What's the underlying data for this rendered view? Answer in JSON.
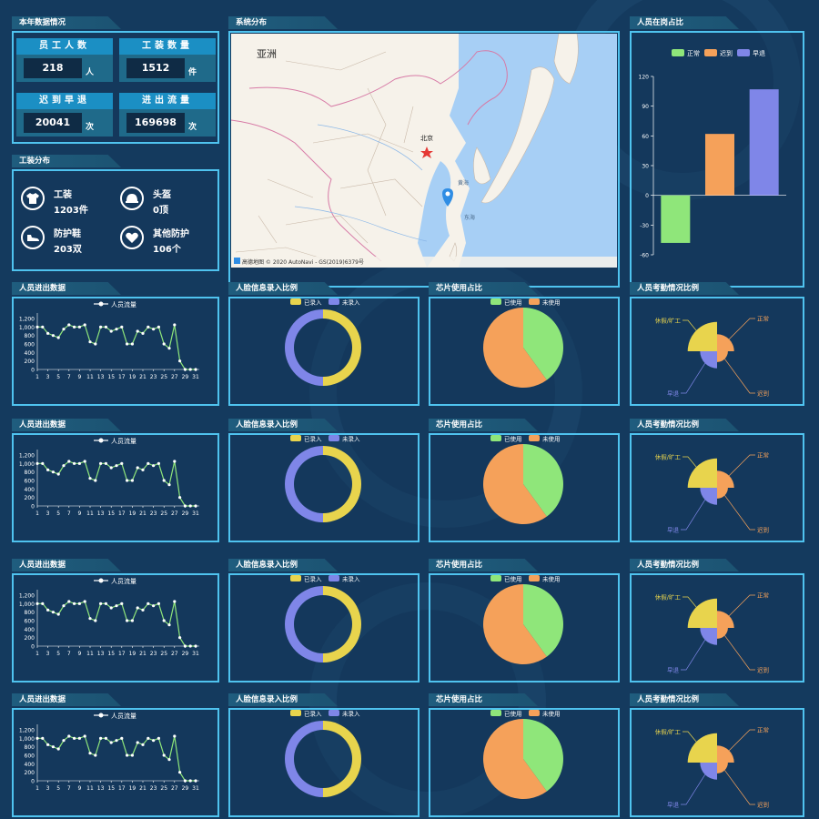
{
  "year_stats": {
    "title": "本年数据情况",
    "cells": [
      {
        "label": "员工人数",
        "value": "218",
        "unit": "人"
      },
      {
        "label": "工装数量",
        "value": "1512",
        "unit": "件"
      },
      {
        "label": "迟到早退",
        "value": "20041",
        "unit": "次"
      },
      {
        "label": "进出流量",
        "value": "169698",
        "unit": "次"
      }
    ]
  },
  "equipment": {
    "title": "工装分布",
    "items": [
      {
        "name": "工装",
        "value": "1203件",
        "icon": "shirt-icon"
      },
      {
        "name": "头盔",
        "value": "0顶",
        "icon": "helmet-icon"
      },
      {
        "name": "防护鞋",
        "value": "203双",
        "icon": "shoe-icon"
      },
      {
        "name": "其他防护",
        "value": "106个",
        "icon": "heart-icon"
      }
    ]
  },
  "map": {
    "title": "系统分布",
    "region_label": "亚洲",
    "city_label": "北京",
    "sea_label_1": "黄海",
    "sea_label_2": "东海",
    "attribution": "高德地图 © 2020 AutoNavi - GS(2019)6379号"
  },
  "attendance_bar": {
    "title": "人员在岗占比",
    "chart_data": {
      "type": "bar",
      "categories": [
        "正常",
        "迟到",
        "早退"
      ],
      "values": [
        -48,
        62,
        107
      ],
      "colors": [
        "#8fe67a",
        "#f5a15a",
        "#7f86e8"
      ],
      "ylim": [
        -60,
        120
      ],
      "yticks": [
        -60,
        -30,
        0,
        30,
        60,
        90,
        120
      ],
      "legend": "top"
    }
  },
  "row_titles": {
    "flow": "人员进出数据",
    "face": "人脸信息录入比例",
    "chip": "芯片使用占比",
    "attend": "人员考勤情况比例"
  },
  "flow_chart": {
    "chart_data": {
      "type": "line",
      "series_name": "人员流量",
      "x": [
        1,
        2,
        3,
        4,
        5,
        6,
        7,
        8,
        9,
        10,
        11,
        12,
        13,
        14,
        15,
        16,
        17,
        18,
        19,
        20,
        21,
        22,
        23,
        24,
        25,
        26,
        27,
        28,
        29,
        30,
        31
      ],
      "y": [
        1000,
        1000,
        850,
        800,
        750,
        950,
        1050,
        1000,
        1000,
        1050,
        650,
        600,
        1000,
        1000,
        900,
        950,
        1000,
        600,
        600,
        900,
        850,
        1000,
        950,
        1000,
        600,
        500,
        1050,
        200,
        0,
        0,
        0
      ],
      "xticks": [
        1,
        3,
        5,
        7,
        9,
        11,
        13,
        15,
        17,
        19,
        21,
        23,
        25,
        27,
        29,
        31
      ],
      "yticks": [
        0,
        200,
        400,
        600,
        800,
        1000,
        1200
      ],
      "ytick_labels": [
        "0",
        "200",
        "400",
        "600",
        "800",
        "1,000",
        "1,200"
      ],
      "ylim": [
        0,
        1200
      ],
      "color": "#8fe67a"
    }
  },
  "face_chart": {
    "chart_data": {
      "type": "pie",
      "labels": [
        "已录入",
        "未录入"
      ],
      "values": [
        50,
        50
      ],
      "colors": [
        "#e8d44d",
        "#7f86e8"
      ],
      "donut": true
    }
  },
  "chip_chart": {
    "chart_data": {
      "type": "pie",
      "labels": [
        "已使用",
        "未使用"
      ],
      "values": [
        40,
        60
      ],
      "colors": [
        "#8fe67a",
        "#f5a15a"
      ]
    }
  },
  "attend_chart": {
    "chart_data": {
      "type": "pie",
      "labels": [
        "正常",
        "迟到",
        "早退",
        "休假/旷工"
      ],
      "values": [
        25,
        25,
        25,
        25
      ],
      "radii": [
        0.55,
        0.35,
        0.55,
        0.95
      ],
      "colors": [
        "#f5a15a",
        "#f5a15a",
        "#7f86e8",
        "#e8d44d"
      ],
      "rose": true
    }
  }
}
